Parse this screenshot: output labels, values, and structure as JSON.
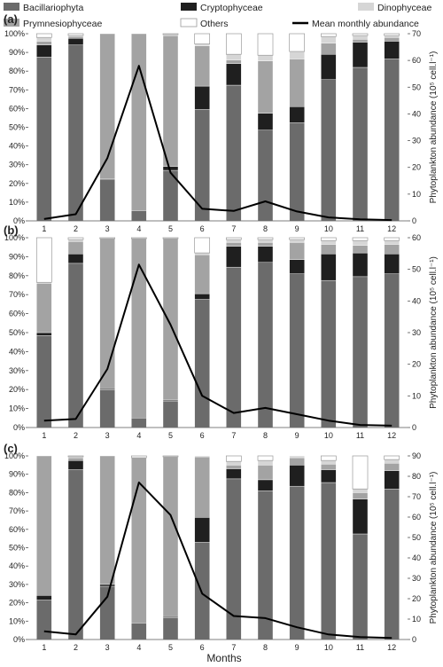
{
  "legend": [
    {
      "name": "Bacillariophyta",
      "color": "#6b6b6b",
      "kind": "box"
    },
    {
      "name": "Cryptophyceae",
      "color": "#1f1f1f",
      "kind": "box"
    },
    {
      "name": "Dinophyceae",
      "color": "#d6d6d6",
      "kind": "box"
    },
    {
      "name": "Prymnesiophyceae",
      "color": "#a3a3a3",
      "kind": "box"
    },
    {
      "name": "Others",
      "color": "#ffffff",
      "kind": "box"
    },
    {
      "name": "Mean monthly abundance",
      "color": "#000000",
      "kind": "line"
    }
  ],
  "xlabel": "Months",
  "chart_data": [
    {
      "type": "bar",
      "panel_label": "(a)",
      "categories": [
        "1",
        "2",
        "3",
        "4",
        "5",
        "6",
        "7",
        "8",
        "9",
        "10",
        "11",
        "12"
      ],
      "series": [
        {
          "name": "Bacillariophyta",
          "values": [
            87.5,
            94,
            22,
            5.5,
            27,
            59.5,
            72.5,
            48.5,
            52.5,
            75.5,
            82,
            86.5
          ]
        },
        {
          "name": "Cryptophyceae",
          "values": [
            6.5,
            3.5,
            0.5,
            0,
            2,
            12.5,
            11.5,
            9,
            8.5,
            13.5,
            13.5,
            9.5
          ]
        },
        {
          "name": "Prymnesiophyceae",
          "values": [
            2,
            1,
            77.5,
            94.5,
            70,
            21.5,
            2,
            28,
            25.5,
            6,
            1.5,
            2
          ]
        },
        {
          "name": "Dinophyceae",
          "values": [
            2,
            0.5,
            0,
            0,
            0.5,
            1,
            3,
            3,
            4,
            3.5,
            2,
            1
          ]
        },
        {
          "name": "Others",
          "values": [
            2,
            1,
            0,
            0,
            0.5,
            5.5,
            11,
            11.5,
            9.5,
            1.5,
            1,
            1
          ]
        }
      ],
      "line": {
        "name": "Mean monthly abundance",
        "values": [
          0.7,
          2.5,
          23.5,
          58,
          18,
          4.5,
          3.7,
          7.3,
          3.5,
          1.3,
          0.6,
          0.3
        ]
      },
      "ylim": [
        0,
        100
      ],
      "y_ticks": [
        "0%",
        "10%",
        "20%",
        "30%",
        "40%",
        "50%",
        "60%",
        "70%",
        "80%",
        "90%",
        "100%"
      ],
      "y2lim": [
        0,
        70
      ],
      "y2_ticks": [
        "0",
        "10",
        "20",
        "30",
        "40",
        "50",
        "60",
        "70"
      ],
      "y2label": "Phytoplankton abundance (10⁵ cell.l⁻¹)"
    },
    {
      "type": "bar",
      "panel_label": "(b)",
      "categories": [
        "1",
        "2",
        "3",
        "4",
        "5",
        "6",
        "7",
        "8",
        "9",
        "10",
        "11",
        "12"
      ],
      "series": [
        {
          "name": "Bacillariophyta",
          "values": [
            48.5,
            86.5,
            20,
            5,
            14,
            67.5,
            84.5,
            87,
            81,
            77.5,
            79.5,
            81
          ]
        },
        {
          "name": "Cryptophyceae",
          "values": [
            1.5,
            5,
            0.5,
            0,
            0.5,
            3,
            11,
            8.5,
            7.5,
            14,
            12.5,
            10.5
          ]
        },
        {
          "name": "Prymnesiophyceae",
          "values": [
            26,
            6.5,
            79,
            94.5,
            85,
            20.5,
            2,
            2,
            9,
            5,
            4,
            5
          ]
        },
        {
          "name": "Dinophyceae",
          "values": [
            0.5,
            1,
            0,
            0,
            0,
            1,
            1.5,
            1.5,
            1.5,
            2,
            2.5,
            2
          ]
        },
        {
          "name": "Others",
          "values": [
            23.5,
            1,
            0.5,
            0.5,
            0.5,
            8,
            1,
            1,
            1,
            1.5,
            1.5,
            1.5
          ]
        }
      ],
      "line": {
        "name": "Mean monthly abundance",
        "values": [
          2.2,
          2.7,
          18.5,
          51.5,
          32.5,
          10,
          4.6,
          6.2,
          4.2,
          2.2,
          0.8,
          0.6
        ]
      },
      "ylim": [
        0,
        100
      ],
      "y_ticks": [
        "0%",
        "10%",
        "20%",
        "30%",
        "40%",
        "50%",
        "60%",
        "70%",
        "80%",
        "90%",
        "100%"
      ],
      "y2lim": [
        0,
        60
      ],
      "y2_ticks": [
        "0",
        "10",
        "20",
        "30",
        "40",
        "50",
        "60"
      ],
      "y2label": "Phytoplankton abundance (10⁵ cell.l⁻¹)"
    },
    {
      "type": "bar",
      "panel_label": "(c)",
      "categories": [
        "1",
        "2",
        "3",
        "4",
        "5",
        "6",
        "7",
        "8",
        "9",
        "10",
        "11",
        "12"
      ],
      "series": [
        {
          "name": "Bacillariophyta",
          "values": [
            21.5,
            92.5,
            29,
            9,
            12,
            53,
            87.5,
            81,
            83.5,
            85.5,
            57.5,
            82
          ]
        },
        {
          "name": "Cryptophyceae",
          "values": [
            2.5,
            5,
            1,
            0,
            0.5,
            13.5,
            5.5,
            6,
            11.5,
            7,
            19,
            10
          ]
        },
        {
          "name": "Prymnesiophyceae",
          "values": [
            76,
            1.5,
            70,
            90,
            87,
            33,
            2,
            8,
            4,
            3,
            3.5,
            4
          ]
        },
        {
          "name": "Dinophyceae",
          "values": [
            0,
            0.5,
            0,
            0,
            0,
            0.5,
            2,
            2.5,
            1,
            2,
            2,
            2
          ]
        },
        {
          "name": "Others",
          "values": [
            0,
            0.5,
            0,
            1,
            0.5,
            0,
            3,
            2.5,
            0,
            2.5,
            18,
            2
          ]
        }
      ],
      "line": {
        "name": "Mean monthly abundance",
        "values": [
          4,
          2.5,
          21,
          77,
          61,
          22.5,
          11.5,
          10.5,
          6,
          2.5,
          1.2,
          0.8
        ]
      },
      "ylim": [
        0,
        100
      ],
      "y_ticks": [
        "0%",
        "10%",
        "20%",
        "30%",
        "40%",
        "50%",
        "60%",
        "70%",
        "80%",
        "90%",
        "100%"
      ],
      "y2lim": [
        0,
        90
      ],
      "y2_ticks": [
        "0",
        "10",
        "20",
        "30",
        "40",
        "50",
        "60",
        "70",
        "80",
        "90"
      ],
      "y2label": "Phytoplankton abundance (10⁵ cell.l⁻¹)"
    }
  ]
}
